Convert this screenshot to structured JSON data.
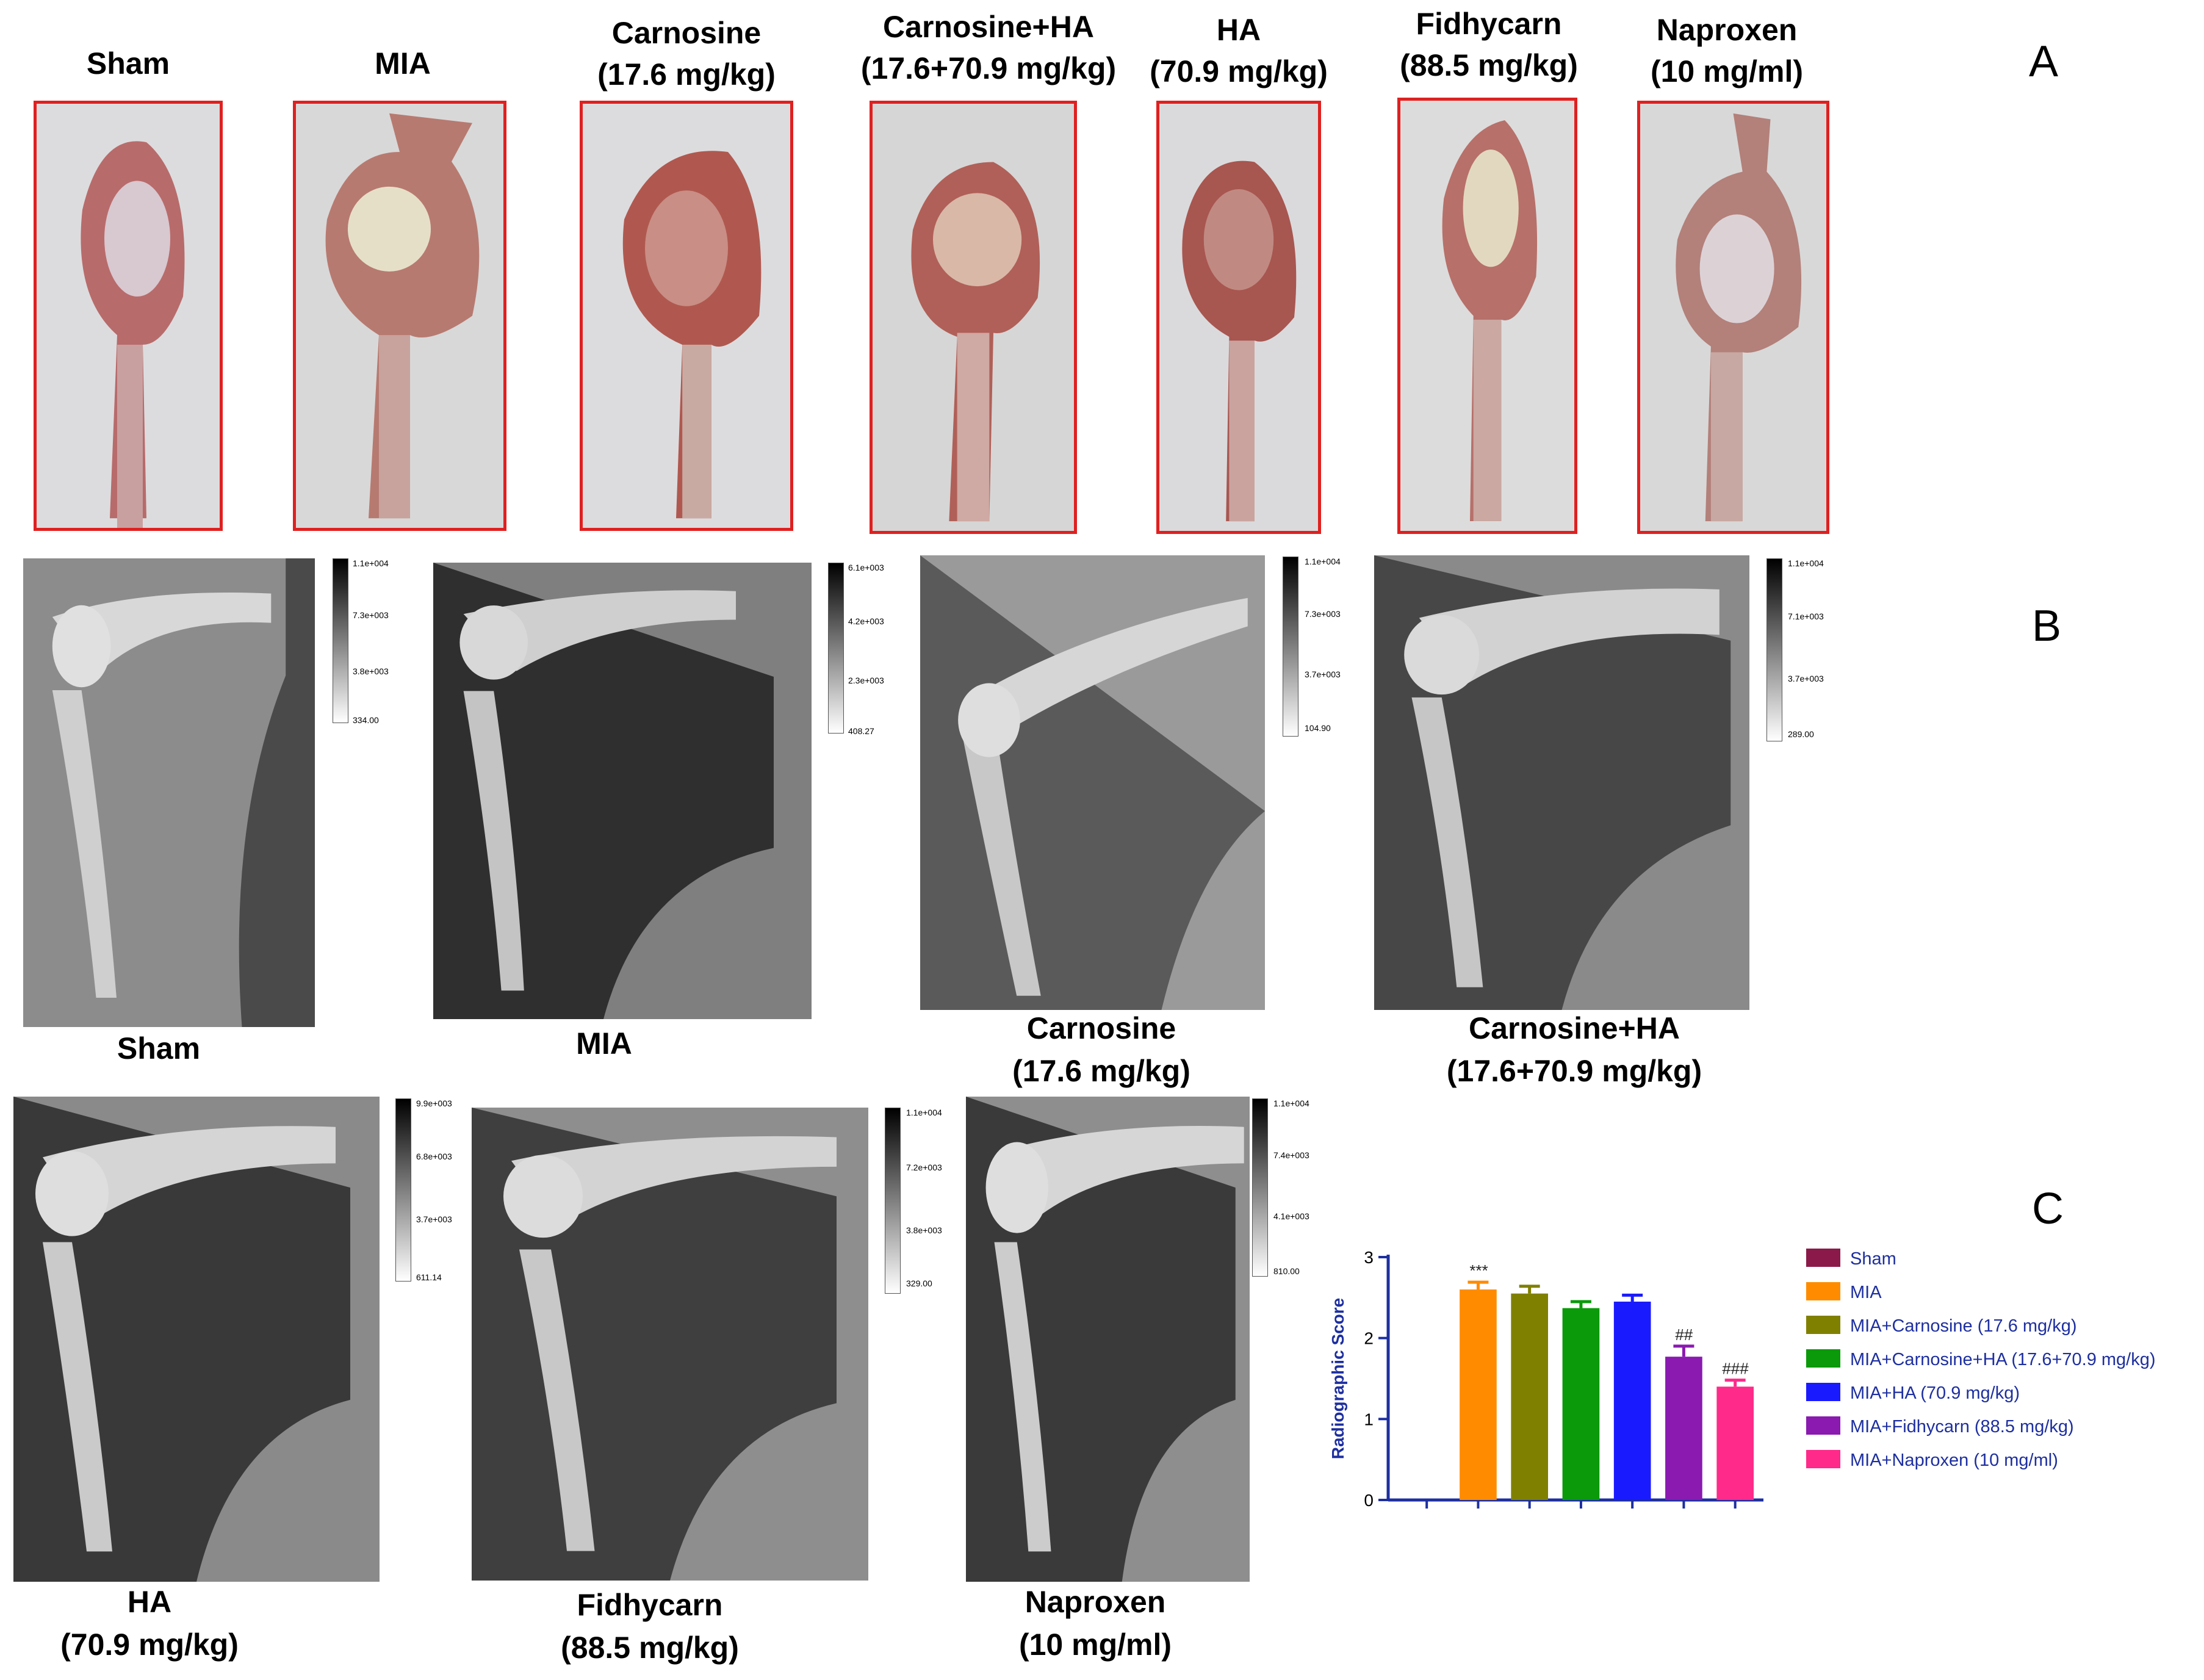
{
  "panel_letters": {
    "a": "A",
    "b": "B",
    "c": "C"
  },
  "panel_a": {
    "headers": [
      "Sham",
      "MIA",
      "Carnosine\n(17.6 mg/kg)",
      "Carnosine+HA\n(17.6+70.9 mg/kg)",
      "HA\n(70.9 mg/kg)",
      "Fidhycarn\n(88.5 mg/kg)",
      "Naproxen\n(10 mg/ml)"
    ]
  },
  "panel_b": {
    "items": [
      {
        "label": "Sham",
        "cbar": [
          "1.1e+004",
          "7.3e+003",
          "3.8e+003",
          "334.00"
        ]
      },
      {
        "label": "MIA",
        "cbar": [
          "6.1e+003",
          "4.2e+003",
          "2.3e+003",
          "408.27"
        ]
      },
      {
        "label": "Carnosine\n(17.6 mg/kg)",
        "cbar": [
          "1.1e+004",
          "7.3e+003",
          "3.7e+003",
          "104.90"
        ]
      },
      {
        "label": "Carnosine+HA\n(17.6+70.9 mg/kg)",
        "cbar": [
          "1.1e+004",
          "7.1e+003",
          "3.7e+003",
          "289.00"
        ]
      },
      {
        "label": "HA\n(70.9 mg/kg)",
        "cbar": [
          "9.9e+003",
          "6.8e+003",
          "3.7e+003",
          "611.14"
        ]
      },
      {
        "label": "Fidhycarn\n(88.5 mg/kg)",
        "cbar": [
          "1.1e+004",
          "7.2e+003",
          "3.8e+003",
          "329.00"
        ]
      },
      {
        "label": "Naproxen\n(10 mg/ml)",
        "cbar": [
          "1.1e+004",
          "7.4e+003",
          "4.1e+003",
          "810.00"
        ]
      }
    ]
  },
  "chart_data": {
    "type": "bar",
    "title": "",
    "xlabel": "",
    "ylabel": "Radiographic Score",
    "ylim": [
      0,
      3
    ],
    "yticks": [
      "0",
      "1",
      "2",
      "3"
    ],
    "categories": [
      "Sham",
      "MIA",
      "MIA+Carnosine (17.6 mg/kg)",
      "MIA+Carnosine+HA (17.6+70.9 mg/kg)",
      "MIA+HA (70.9 mg/kg)",
      "MIA+Fidhycarn (88.5 mg/kg)",
      "MIA+Naproxen (10 mg/ml)"
    ],
    "values": [
      0,
      2.6,
      2.55,
      2.37,
      2.45,
      1.77,
      1.4
    ],
    "errors": [
      0,
      0.09,
      0.09,
      0.08,
      0.08,
      0.13,
      0.08
    ],
    "colors": [
      "#8b1a4a",
      "#ff8c00",
      "#808000",
      "#0a9a0a",
      "#1a1aff",
      "#8a1ab0",
      "#ff2a8a"
    ],
    "annotations": [
      "",
      "***",
      "",
      "",
      "",
      "##",
      "###"
    ],
    "legend": "right",
    "grid": false
  }
}
